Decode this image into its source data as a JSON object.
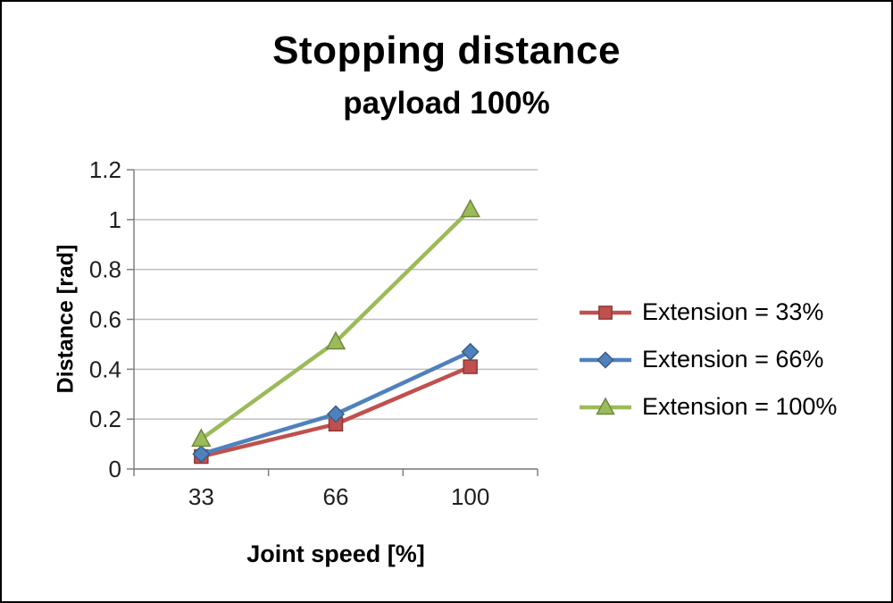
{
  "title": "Stopping distance",
  "subtitle": "payload 100%",
  "chart_data": {
    "type": "line",
    "categories": [
      "33",
      "66",
      "100"
    ],
    "series": [
      {
        "name": "Extension = 33%",
        "color": "#c0504d",
        "marker": "square",
        "values": [
          0.05,
          0.18,
          0.41
        ]
      },
      {
        "name": "Extension = 66%",
        "color": "#4f81bd",
        "marker": "diamond",
        "values": [
          0.06,
          0.22,
          0.47
        ]
      },
      {
        "name": "Extension = 100%",
        "color": "#9bbb59",
        "marker": "triangle",
        "values": [
          0.12,
          0.51,
          1.04
        ]
      }
    ],
    "xlabel": "Joint speed [%]",
    "ylabel": "Distance [rad]",
    "ylim": [
      0,
      1.2
    ],
    "ytick_step": 0.2,
    "grid": true,
    "legend_position": "right",
    "colors": {
      "gridline": "#bfbfbf",
      "axis": "#808080",
      "tick_text": "#1f1f1f"
    }
  }
}
